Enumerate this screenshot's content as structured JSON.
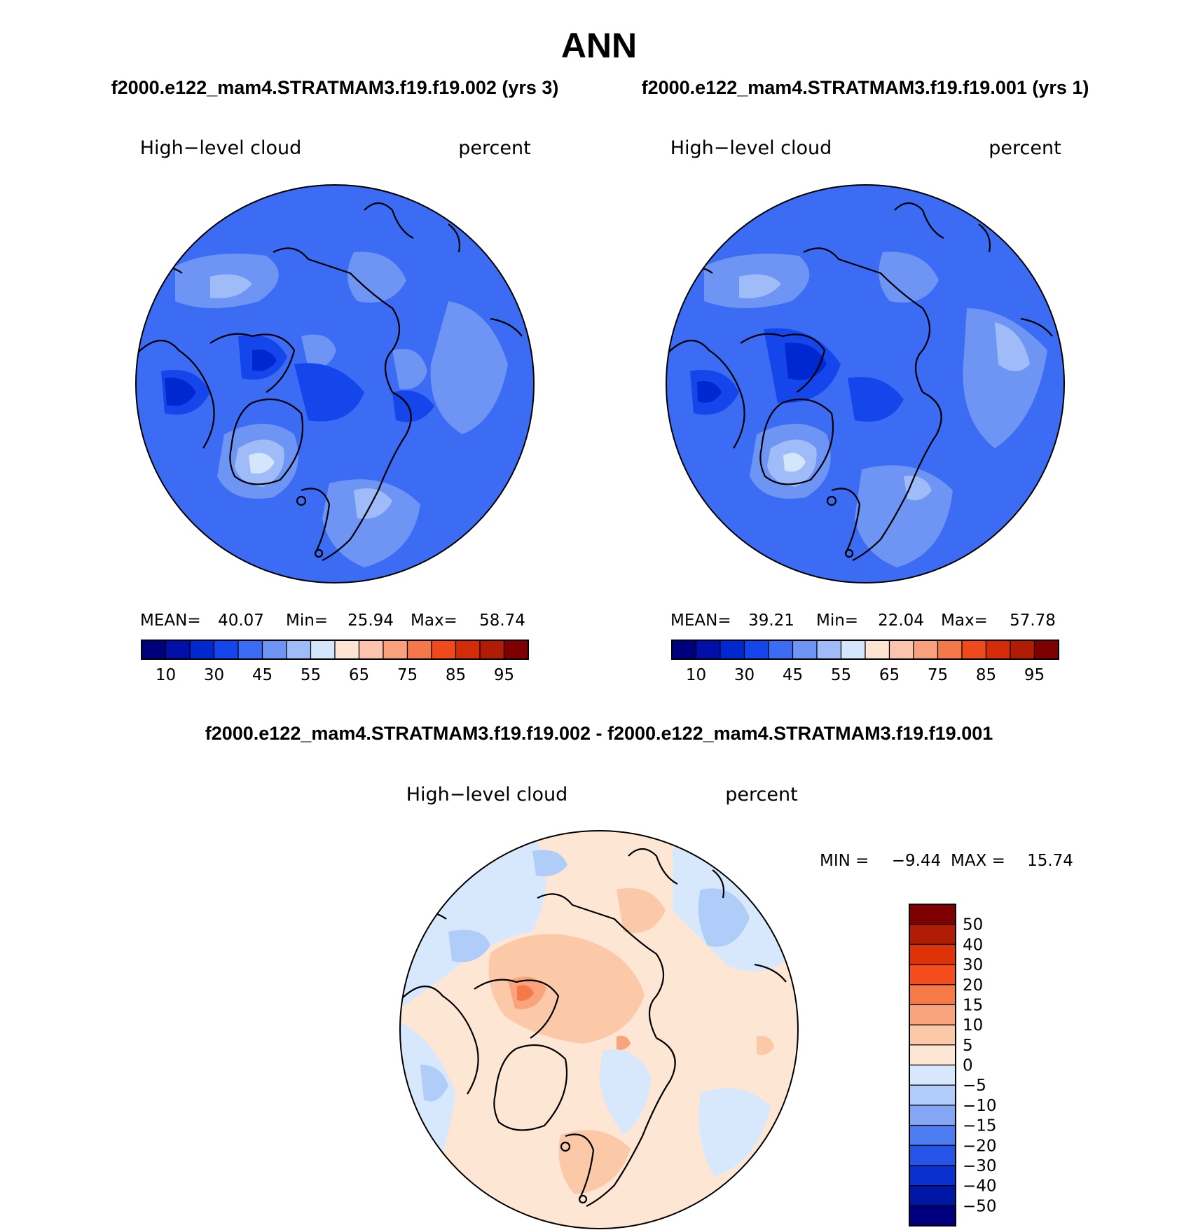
{
  "page_title": "ANN",
  "panels": [
    {
      "case_title": "f2000.e122_mam4.STRATMAM3.f19.f19.002 (yrs 3)",
      "variable": "High−level cloud",
      "units": "percent",
      "stats": {
        "mean_label": "MEAN=",
        "mean": "40.07",
        "min_label": "Min=",
        "min": "25.94",
        "max_label": "Max=",
        "max": "58.74"
      },
      "field_level": 2
    },
    {
      "case_title": "f2000.e122_mam4.STRATMAM3.f19.f19.001 (yrs 1)",
      "variable": "High−level cloud",
      "units": "percent",
      "stats": {
        "mean_label": "MEAN=",
        "mean": "39.21",
        "min_label": "Min=",
        "min": "22.04",
        "max_label": "Max=",
        "max": "57.78"
      },
      "field_level": 2
    }
  ],
  "colorbar": {
    "colors": [
      "#00007f",
      "#0010a8",
      "#0028d0",
      "#1446ec",
      "#3c6cf4",
      "#6e94f4",
      "#a0bcf8",
      "#d4e6fc",
      "#fde4d2",
      "#fcc4ac",
      "#f9a07c",
      "#f5784a",
      "#ee4a1c",
      "#d42c08",
      "#b01c04",
      "#7e0000"
    ],
    "labels": [
      "10",
      "30",
      "45",
      "55",
      "65",
      "75",
      "85",
      "95"
    ]
  },
  "diff": {
    "title": "f2000.e122_mam4.STRATMAM3.f19.f19.002 - f2000.e122_mam4.STRATMAM3.f19.f19.001",
    "variable": "High−level cloud",
    "units": "percent",
    "min_label": "MIN =",
    "min": "−9.44",
    "max_label": "MAX =",
    "max": "15.74",
    "colorbar": {
      "colors": [
        "#7e0000",
        "#b01c04",
        "#de3208",
        "#f44c1c",
        "#f57a48",
        "#f9a47c",
        "#fbc8a8",
        "#fde6d4",
        "#d8e8fc",
        "#b0ccf8",
        "#84a6f4",
        "#4c7cf0",
        "#2454e8",
        "#0a30d0",
        "#0016a4",
        "#00007f"
      ],
      "labels": [
        "50",
        "40",
        "30",
        "20",
        "15",
        "10",
        "5",
        "0",
        "−5",
        "−10",
        "−15",
        "−20",
        "−30",
        "−40",
        "−50"
      ]
    }
  }
}
